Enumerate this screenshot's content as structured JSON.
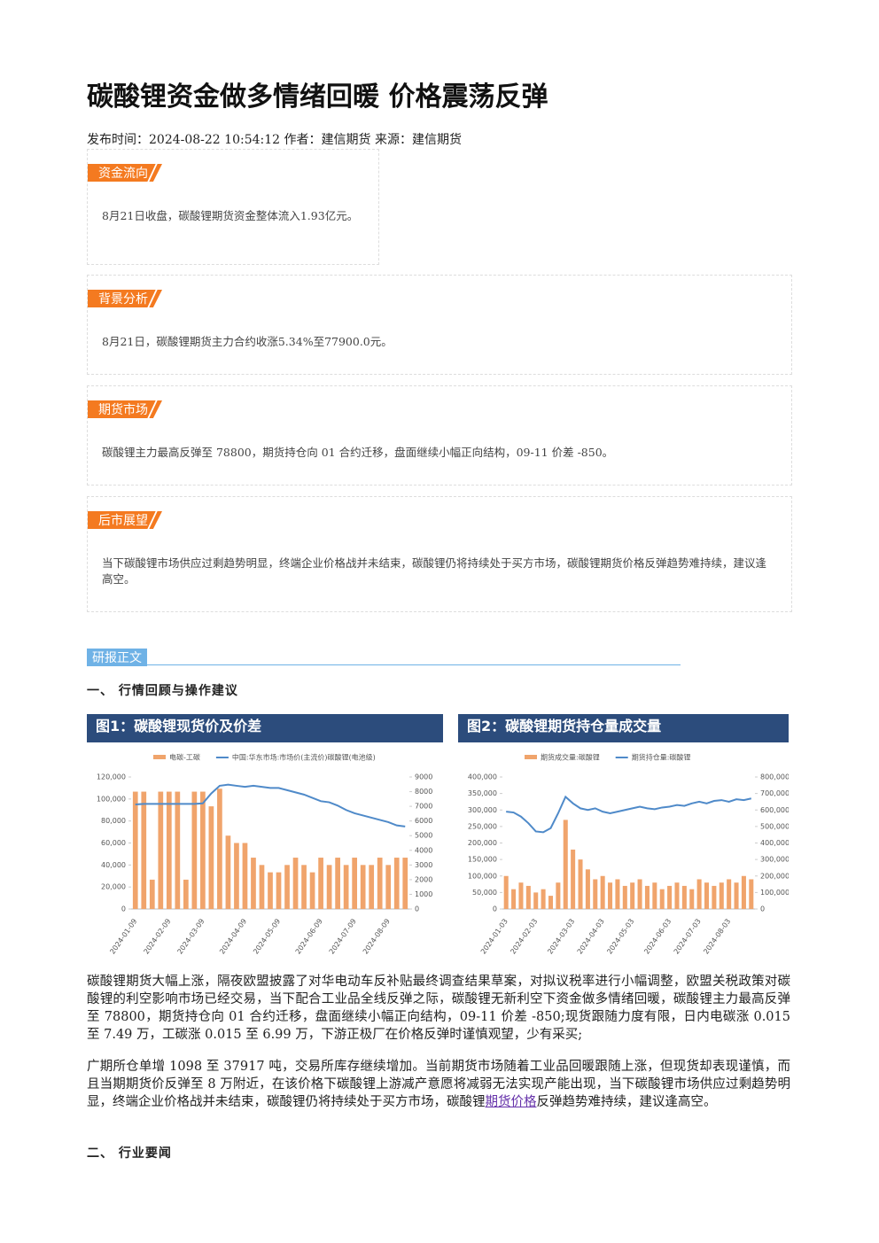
{
  "header": {
    "title": "碳酸锂资金做多情绪回暖 价格震荡反弹",
    "meta": "发布时间：2024-08-22 10:54:12 作者：建信期货 来源：建信期货"
  },
  "boxes": [
    {
      "tag": "资金流向",
      "text": "8月21日收盘，碳酸锂期货资金整体流入1.93亿元。"
    },
    {
      "tag": "背景分析",
      "text": "8月21日，碳酸锂期货主力合约收涨5.34%至77900.0元。"
    },
    {
      "tag": "期货市场",
      "text": "碳酸锂主力最高反弹至 78800，期货持仓向 01 合约迁移，盘面继续小幅正向结构，09-11 价差 -850。"
    },
    {
      "tag": "后市展望",
      "text": "当下碳酸锂市场供应过剩趋势明显，终端企业价格战并未结束，碳酸锂仍将持续处于买方市场，碳酸锂期货价格反弹趋势难持续，建议逢高空。"
    }
  ],
  "section_tag": "研报正文",
  "heading1": "一、 行情回顾与操作建议",
  "paragraphs": [
    {
      "text": "碳酸锂期货大幅上涨，隔夜欧盟披露了对华电动车反补贴最终调查结果草案，对拟议税率进行小幅调整，欧盟关税政策对碳酸锂的利空影响市场已经交易，当下配合工业品全线反弹之际，碳酸锂无新利空下资金做多情绪回暖，碳酸锂主力最高反弹至 78800，期货持仓向 01 合约迁移，盘面继续小幅正向结构，09-11 价差 -850;现货跟随力度有限，日内电碳涨 0.015 至 7.49 万，工碳涨 0.015 至 6.99 万，下游正极厂在价格反弹时谨慎观望，少有采买;"
    },
    {
      "before": "广期所仓单增 1098 至 37917 吨，交易所库存继续增加。当前期货市场随着工业品回暖跟随上涨，但现货却表现谨慎，而且当期期货价反弹至 8 万附近，在该价格下碳酸锂上游减产意愿将减弱无法实现产能出现，当下碳酸锂市场供应过剩趋势明显，终端企业价格战并未结束，碳酸锂仍将持续处于买方市场，碳酸锂",
      "link": "期货价格",
      "after": "反弹趋势难持续，建议逢高空。"
    }
  ],
  "heading2": "二、 行业要闻",
  "chart_data": [
    {
      "type": "combo",
      "title": "图1：碳酸锂现货价及价差",
      "categories": [
        "2024-01-09",
        null,
        null,
        null,
        "2024-02-09",
        null,
        null,
        null,
        "2024-03-09",
        null,
        null,
        null,
        null,
        "2024-04-09",
        null,
        null,
        null,
        "2024-05-09",
        null,
        null,
        null,
        null,
        "2024-06-09",
        null,
        null,
        null,
        "2024-07-09",
        null,
        null,
        null,
        "2024-08-09",
        null,
        null
      ],
      "series": [
        {
          "name": "电碳-工碳",
          "type": "bar",
          "axis": "y2",
          "color": "#f0a46c",
          "values": [
            8000,
            8000,
            2000,
            8000,
            8000,
            8000,
            2000,
            8000,
            8000,
            7000,
            8200,
            5000,
            4500,
            4500,
            3500,
            3000,
            2500,
            2500,
            3000,
            3500,
            3000,
            2500,
            3500,
            3000,
            3500,
            3000,
            3500,
            3000,
            3000,
            3500,
            3000,
            3500,
            3500
          ]
        },
        {
          "name": "中国:华东市场:市场价(主流价)碳酸锂(电池级)",
          "type": "line",
          "color": "#4f8ac9",
          "values": [
            95000,
            95500,
            95500,
            95500,
            95500,
            95500,
            95500,
            95500,
            96000,
            105000,
            112000,
            113000,
            112000,
            111000,
            112000,
            111000,
            110000,
            110000,
            108000,
            106000,
            104000,
            101000,
            98000,
            97000,
            94000,
            90000,
            87000,
            85000,
            83000,
            81000,
            79000,
            76000,
            75000
          ]
        }
      ],
      "ylim": [
        0,
        120000
      ],
      "yticks": [
        0,
        {
          "value": 20000,
          "label": "20,000"
        },
        {
          "value": 40000,
          "label": "40,000"
        },
        {
          "value": 60000,
          "label": "60,000"
        },
        {
          "value": 80000,
          "label": "80,000"
        },
        {
          "value": 100000,
          "label": "100,000"
        },
        {
          "value": 120000,
          "label": "120,000"
        }
      ],
      "y2lim": [
        0,
        9000
      ],
      "y2ticks": [
        0,
        1000,
        2000,
        3000,
        4000,
        5000,
        6000,
        7000,
        8000,
        9000
      ]
    },
    {
      "type": "combo",
      "title": "图2：碳酸锂期货持仓量成交量",
      "categories": [
        "2024-01-03",
        null,
        null,
        null,
        "2024-02-03",
        null,
        null,
        null,
        null,
        "2024-03-03",
        null,
        null,
        null,
        "2024-04-03",
        null,
        null,
        null,
        "2024-05-03",
        null,
        null,
        null,
        null,
        "2024-06-03",
        null,
        null,
        null,
        "2024-07-03",
        null,
        null,
        null,
        "2024-08-03",
        null,
        null,
        null
      ],
      "series": [
        {
          "name": "期货成交量:碳酸锂",
          "type": "bar",
          "color": "#f0a46c",
          "values": [
            100000,
            60000,
            80000,
            70000,
            50000,
            60000,
            40000,
            80000,
            270000,
            180000,
            150000,
            120000,
            90000,
            100000,
            80000,
            90000,
            70000,
            80000,
            90000,
            70000,
            80000,
            60000,
            70000,
            80000,
            70000,
            60000,
            90000,
            80000,
            70000,
            80000,
            90000,
            80000,
            100000,
            90000
          ]
        },
        {
          "name": "期货持仓量:碳酸锂",
          "type": "line",
          "axis": "y2",
          "color": "#4f8ac9",
          "values": [
            590000,
            585000,
            560000,
            520000,
            470000,
            465000,
            490000,
            580000,
            680000,
            640000,
            610000,
            600000,
            610000,
            590000,
            580000,
            590000,
            600000,
            610000,
            620000,
            610000,
            605000,
            615000,
            620000,
            630000,
            625000,
            640000,
            650000,
            640000,
            655000,
            660000,
            650000,
            665000,
            660000,
            670000
          ]
        }
      ],
      "ylim": [
        0,
        400000
      ],
      "yticks": [
        0,
        {
          "value": 50000,
          "label": "50,000"
        },
        {
          "value": 100000,
          "label": "100,000"
        },
        {
          "value": 150000,
          "label": "150,000"
        },
        {
          "value": 200000,
          "label": "200,000"
        },
        {
          "value": 250000,
          "label": "250,000"
        },
        {
          "value": 300000,
          "label": "300,000"
        },
        {
          "value": 350000,
          "label": "350,000"
        },
        {
          "value": 400000,
          "label": "400,000"
        }
      ],
      "y2lim": [
        0,
        800000
      ],
      "y2ticks": [
        0,
        {
          "value": 100000,
          "label": "100,000"
        },
        {
          "value": 200000,
          "label": "200,000"
        },
        {
          "value": 300000,
          "label": "300,000"
        },
        {
          "value": 400000,
          "label": "400,000"
        },
        {
          "value": 500000,
          "label": "500,000"
        },
        {
          "value": 600000,
          "label": "600,000"
        },
        {
          "value": 700000,
          "label": "700,000"
        },
        {
          "value": 800000,
          "label": "800,000"
        }
      ]
    }
  ]
}
